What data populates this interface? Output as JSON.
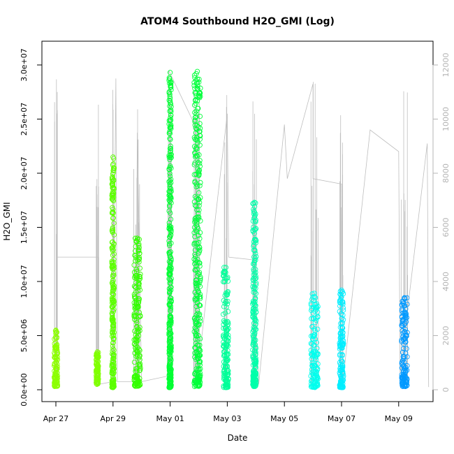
{
  "chart_data": {
    "type": "scatter",
    "title": "ATOM4 Southbound H2O_GMI (Log)",
    "xlabel": "Date",
    "ylabel": "H2O_GMI",
    "x_ticks": [
      "Apr 27",
      "Apr 29",
      "May 01",
      "May 03",
      "May 05",
      "May 07",
      "May 09"
    ],
    "y_ticks": [
      "0.0e+00",
      "5.0e+06",
      "1.0e+07",
      "1.5e+07",
      "2.0e+07",
      "2.5e+07",
      "3.0e+07"
    ],
    "y2_ticks": [
      "0",
      "2000",
      "4000",
      "6000",
      "8000",
      "10000",
      "12000"
    ],
    "xlim": [
      "Apr 26.6",
      "May 09.8"
    ],
    "ylim": [
      0,
      30000000
    ],
    "y2lim": [
      0,
      12000
    ],
    "grid": false,
    "colors": {
      "altitude_line": "#bebebe",
      "right_axis": "#b4b4b4"
    },
    "altitude_series": {
      "name": "",
      "axis": "right",
      "points": [
        {
          "day": 0.05,
          "alt": 200
        },
        {
          "day": 0.05,
          "alt": 11000
        },
        {
          "day": 0.05,
          "alt": 4900
        },
        {
          "day": 1.5,
          "alt": 4900
        },
        {
          "day": 1.5,
          "alt": 200
        },
        {
          "day": 2.0,
          "alt": 300
        },
        {
          "day": 2.1,
          "alt": 11500
        },
        {
          "day": 2.15,
          "alt": 300
        },
        {
          "day": 2.8,
          "alt": 300
        },
        {
          "day": 2.85,
          "alt": 9500
        },
        {
          "day": 3.0,
          "alt": 300
        },
        {
          "day": 3.9,
          "alt": 500
        },
        {
          "day": 3.95,
          "alt": 11800
        },
        {
          "day": 4.9,
          "alt": 9700
        },
        {
          "day": 4.95,
          "alt": 500
        },
        {
          "day": 6.0,
          "alt": 10200
        },
        {
          "day": 6.05,
          "alt": 4900
        },
        {
          "day": 6.9,
          "alt": 4800
        },
        {
          "day": 7.1,
          "alt": 200
        },
        {
          "day": 8.0,
          "alt": 9800
        },
        {
          "day": 8.1,
          "alt": 7800
        },
        {
          "day": 9.0,
          "alt": 11300
        },
        {
          "day": 9.0,
          "alt": 7800
        },
        {
          "day": 10.0,
          "alt": 7600
        },
        {
          "day": 10.05,
          "alt": 300
        },
        {
          "day": 11.0,
          "alt": 9600
        },
        {
          "day": 12.0,
          "alt": 8800
        },
        {
          "day": 12.05,
          "alt": 600
        },
        {
          "day": 13.0,
          "alt": 9100
        },
        {
          "day": 13.05,
          "alt": 100
        }
      ]
    },
    "h2o_clusters": [
      {
        "day": 0.0,
        "width": 0.12,
        "base": 300000,
        "top": 5500000,
        "color": "#8cff00"
      },
      {
        "day": 1.45,
        "width": 0.08,
        "base": 500000,
        "top": 3500000,
        "color": "#80ff00"
      },
      {
        "day": 2.0,
        "width": 0.08,
        "base": 200000,
        "top": 21500000,
        "color": "#5cff00"
      },
      {
        "day": 2.85,
        "width": 0.22,
        "base": 300000,
        "top": 14000000,
        "color": "#33ff00"
      },
      {
        "day": 4.0,
        "width": 0.08,
        "base": 200000,
        "top": 29300000,
        "color": "#00ff33"
      },
      {
        "day": 4.95,
        "width": 0.22,
        "base": 300000,
        "top": 29400000,
        "color": "#00ff3a"
      },
      {
        "day": 5.95,
        "width": 0.18,
        "base": 200000,
        "top": 11300000,
        "color": "#00ff99"
      },
      {
        "day": 6.95,
        "width": 0.12,
        "base": 300000,
        "top": 17300000,
        "color": "#00ffaa"
      },
      {
        "day": 9.05,
        "width": 0.25,
        "base": 200000,
        "top": 8900000,
        "color": "#00ffee"
      },
      {
        "day": 10.0,
        "width": 0.14,
        "base": 200000,
        "top": 9200000,
        "color": "#00eeff"
      },
      {
        "day": 12.2,
        "width": 0.2,
        "base": 300000,
        "top": 8500000,
        "color": "#0099ff"
      }
    ]
  }
}
